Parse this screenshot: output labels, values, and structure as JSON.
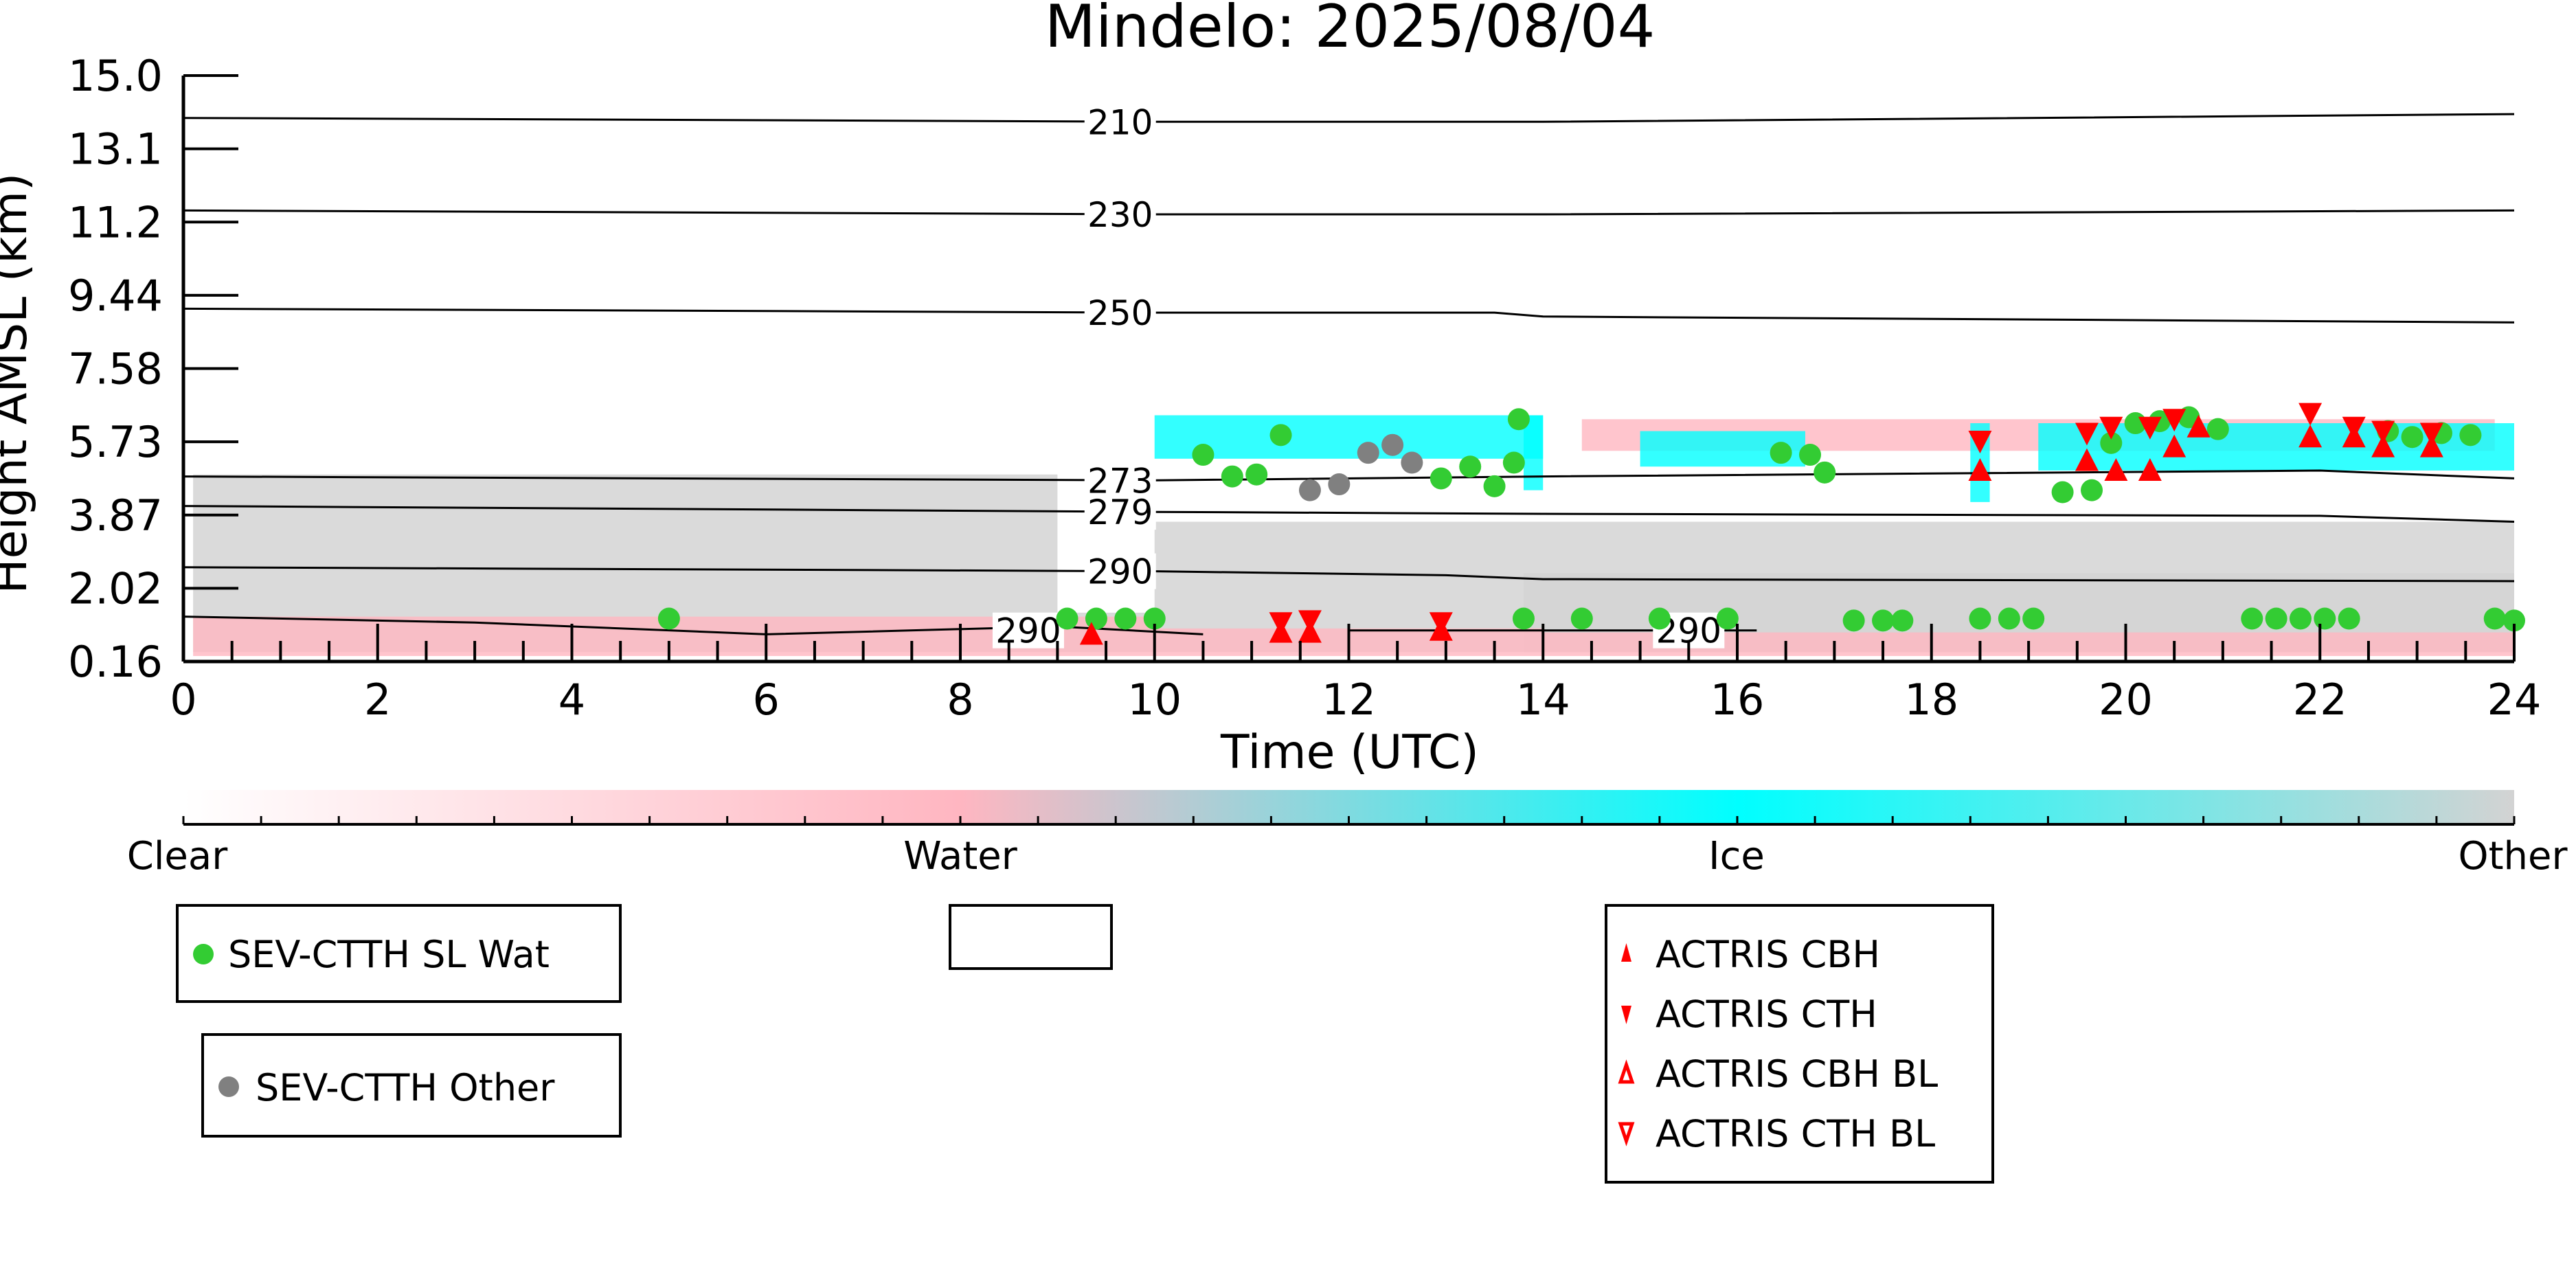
{
  "chart_data": {
    "type": "scatter",
    "title": "Mindelo: 2025/08/04",
    "xlabel": "Time (UTC)",
    "ylabel": "Height AMSL (km)",
    "xlim": [
      0,
      24
    ],
    "ylim": [
      0.16,
      15.0
    ],
    "x_ticks": [
      "0",
      "2",
      "4",
      "6",
      "8",
      "10",
      "12",
      "14",
      "16",
      "18",
      "20",
      "22",
      "24"
    ],
    "y_ticks": [
      "0.16",
      "2.02",
      "3.87",
      "5.73",
      "7.58",
      "9.44",
      "11.2",
      "13.1",
      "15.0"
    ],
    "colorbar": {
      "labels": [
        "Clear",
        "Water",
        "Ice",
        "Other"
      ],
      "colors": {
        "clear": "#ffffff",
        "water": "#ffb6c1",
        "ice": "#00ffff",
        "other": "#d3d3d3"
      }
    },
    "contours": [
      {
        "label": "210",
        "points": [
          [
            0,
            13.9
          ],
          [
            10,
            13.8
          ],
          [
            14,
            13.8
          ],
          [
            24,
            14.0
          ]
        ]
      },
      {
        "label": "230",
        "points": [
          [
            0,
            11.5
          ],
          [
            10,
            11.4
          ],
          [
            14,
            11.4
          ],
          [
            24,
            11.5
          ]
        ]
      },
      {
        "label": "250",
        "points": [
          [
            0,
            9.1
          ],
          [
            10,
            9.0
          ],
          [
            13.5,
            9.0
          ],
          [
            14,
            8.9
          ],
          [
            24,
            8.75
          ]
        ]
      },
      {
        "label": "273",
        "points": [
          [
            0,
            4.85
          ],
          [
            10,
            4.75
          ],
          [
            14,
            4.85
          ],
          [
            22,
            5.0
          ],
          [
            24,
            4.8
          ]
        ]
      },
      {
        "label": "279",
        "points": [
          [
            0,
            4.1
          ],
          [
            10,
            3.95
          ],
          [
            14,
            3.9
          ],
          [
            22,
            3.85
          ],
          [
            24,
            3.7
          ]
        ]
      },
      {
        "label": "290",
        "points": [
          [
            0,
            2.55
          ],
          [
            10,
            2.45
          ],
          [
            13,
            2.35
          ],
          [
            14,
            2.25
          ],
          [
            24,
            2.2
          ]
        ]
      },
      {
        "label": "290",
        "points": [
          [
            0,
            1.3
          ],
          [
            3,
            1.15
          ],
          [
            6,
            0.85
          ],
          [
            9,
            1.05
          ],
          [
            10.5,
            0.85
          ]
        ]
      },
      {
        "label": "290",
        "points": [
          [
            12,
            0.95
          ],
          [
            14,
            0.95
          ],
          [
            16.2,
            0.95
          ]
        ]
      }
    ],
    "series": [
      {
        "name": "SEV-CTTH SL Wat",
        "marker": "circle",
        "color": "#33cc33",
        "points": [
          [
            5,
            1.25
          ],
          [
            9.1,
            1.25
          ],
          [
            9.4,
            1.25
          ],
          [
            9.7,
            1.25
          ],
          [
            10,
            1.25
          ],
          [
            10.5,
            5.4
          ],
          [
            10.8,
            4.85
          ],
          [
            11.05,
            4.9
          ],
          [
            11.3,
            5.9
          ],
          [
            12.95,
            4.8
          ],
          [
            13.25,
            5.1
          ],
          [
            13.5,
            4.6
          ],
          [
            13.7,
            5.2
          ],
          [
            13.75,
            6.3
          ],
          [
            13.8,
            1.25
          ],
          [
            14.4,
            1.25
          ],
          [
            15.2,
            1.25
          ],
          [
            15.9,
            1.25
          ],
          [
            16.45,
            5.45
          ],
          [
            16.75,
            5.4
          ],
          [
            16.9,
            4.95
          ],
          [
            17.2,
            1.2
          ],
          [
            17.5,
            1.2
          ],
          [
            17.7,
            1.2
          ],
          [
            18.5,
            1.25
          ],
          [
            18.8,
            1.25
          ],
          [
            19.05,
            1.25
          ],
          [
            19.35,
            4.45
          ],
          [
            19.65,
            4.5
          ],
          [
            19.85,
            5.7
          ],
          [
            20.1,
            6.2
          ],
          [
            20.35,
            6.25
          ],
          [
            20.65,
            6.35
          ],
          [
            20.95,
            6.05
          ],
          [
            21.3,
            1.25
          ],
          [
            21.55,
            1.25
          ],
          [
            21.8,
            1.25
          ],
          [
            22.05,
            1.25
          ],
          [
            22.3,
            1.25
          ],
          [
            22.7,
            6.0
          ],
          [
            22.95,
            5.85
          ],
          [
            23.25,
            5.95
          ],
          [
            23.55,
            5.9
          ],
          [
            23.8,
            1.25
          ],
          [
            24,
            1.2
          ]
        ]
      },
      {
        "name": "SEV-CTTH Other",
        "marker": "circle",
        "color": "#808080",
        "points": [
          [
            11.6,
            4.5
          ],
          [
            11.9,
            4.65
          ],
          [
            12.2,
            5.45
          ],
          [
            12.45,
            5.65
          ],
          [
            12.65,
            5.2
          ]
        ]
      },
      {
        "name": "ACTRIS CBH",
        "marker": "triangle-up",
        "color": "#ff0000",
        "points": [
          [
            9.35,
            0.85
          ],
          [
            11.3,
            0.9
          ],
          [
            11.6,
            0.9
          ],
          [
            12.95,
            0.95
          ],
          [
            18.5,
            5.0
          ],
          [
            19.6,
            5.25
          ],
          [
            19.9,
            5.0
          ],
          [
            20.25,
            5.0
          ],
          [
            20.5,
            5.6
          ],
          [
            20.75,
            6.1
          ],
          [
            21.9,
            5.85
          ],
          [
            22.35,
            5.85
          ],
          [
            22.65,
            5.6
          ],
          [
            23.15,
            5.6
          ]
        ]
      },
      {
        "name": "ACTRIS CTH",
        "marker": "triangle-down",
        "color": "#ff0000",
        "points": [
          [
            11.3,
            1.15
          ],
          [
            11.6,
            1.2
          ],
          [
            12.95,
            1.15
          ],
          [
            18.5,
            5.75
          ],
          [
            19.6,
            5.95
          ],
          [
            19.85,
            6.1
          ],
          [
            20.25,
            6.1
          ],
          [
            20.5,
            6.3
          ],
          [
            21.9,
            6.45
          ],
          [
            22.35,
            6.1
          ],
          [
            22.65,
            6.0
          ],
          [
            23.15,
            5.95
          ]
        ]
      },
      {
        "name": "ACTRIS CBH BL",
        "marker": "triangle-up-open",
        "color": "#ff0000",
        "points": []
      },
      {
        "name": "ACTRIS CTH BL",
        "marker": "triangle-down-open",
        "color": "#ff0000",
        "points": []
      }
    ],
    "cloud_mask": {
      "other": [
        [
          0.1,
          9.0,
          0.4,
          4.9
        ],
        [
          9.0,
          10.0,
          0.4,
          1.4
        ],
        [
          10.0,
          24.0,
          0.4,
          3.7
        ],
        [
          13.8,
          24.0,
          0.4,
          2.4
        ]
      ],
      "ice": [
        [
          10.0,
          14.0,
          5.3,
          6.4
        ],
        [
          13.8,
          14.0,
          4.5,
          6.4
        ],
        [
          15.0,
          16.7,
          5.1,
          6.0
        ],
        [
          18.4,
          18.6,
          4.2,
          6.2
        ],
        [
          19.1,
          24.0,
          5.0,
          6.2
        ]
      ],
      "water": [
        [
          0.1,
          10.0,
          0.3,
          1.3
        ],
        [
          10.0,
          14.0,
          0.3,
          1.0
        ],
        [
          14.0,
          24.0,
          0.3,
          0.9
        ],
        [
          14.4,
          23.8,
          5.5,
          6.3
        ]
      ]
    }
  },
  "legends": {
    "box1": [
      "SEV-CTTH SL Wat"
    ],
    "box2": [
      "SEV-CTTH Other"
    ],
    "box3": [
      "ACTRIS CBH",
      "ACTRIS CTH",
      "ACTRIS CBH BL",
      "ACTRIS CTH BL"
    ]
  }
}
